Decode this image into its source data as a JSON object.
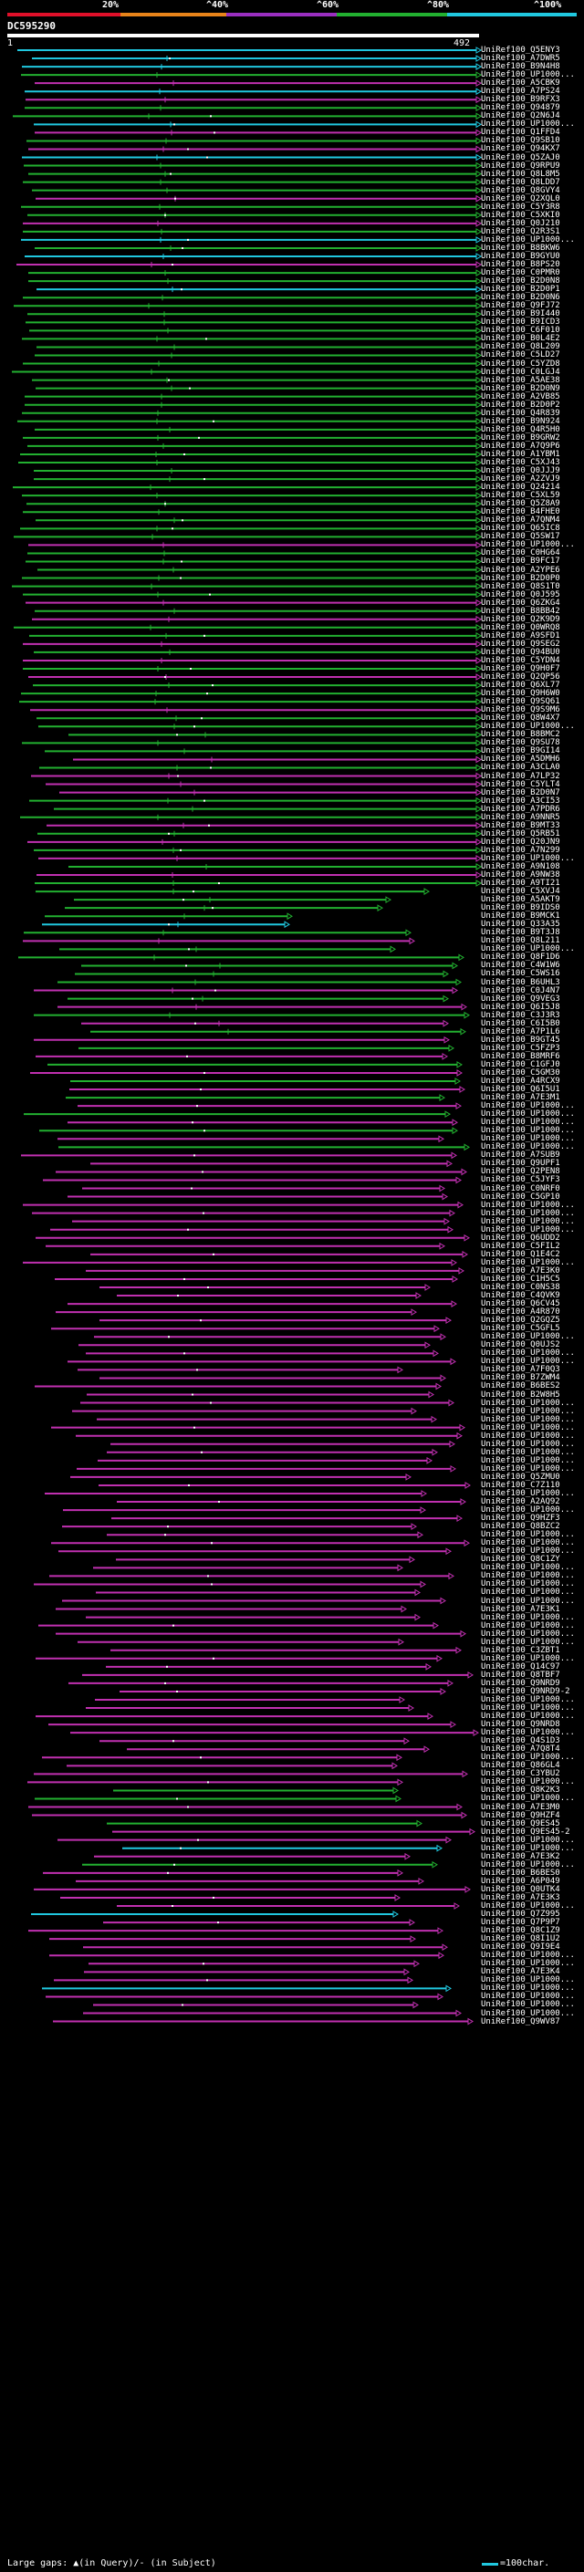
{
  "scale": {
    "labels": [
      "20%",
      "^40%",
      "^60%",
      "^80%",
      "^100%"
    ],
    "colors": [
      "#e0102a",
      "#e8841a",
      "#9a2fc0",
      "#22b030",
      "#20c8e0"
    ]
  },
  "query": {
    "name": "DC595290",
    "start": "1",
    "end": "492"
  },
  "colors": {
    "background": "#000000",
    "cyan": "#20c8e0",
    "green": "#22b030",
    "magenta": "#c030b0",
    "purple": "#9a2fc0",
    "white": "#ffffff"
  },
  "legend": {
    "text": "Large gaps: ▲(in Query)/- (in Subject)",
    "scale_text": "=100char."
  },
  "hits": [
    "UniRef100_Q5ENY3",
    "UniRef100_A7DWR5",
    "UniRef100_B9N4H8",
    "UniRef100_UP1000...",
    "UniRef100_A5CBK9",
    "UniRef100_A7PS24",
    "UniRef100_B9RFX3",
    "UniRef100_Q94879",
    "UniRef100_Q2N6J4",
    "UniRef100_UP1000...",
    "UniRef100_Q1FFD4",
    "UniRef100_Q9SB10",
    "UniRef100_Q94KX7",
    "UniRef100_Q5ZAJ0",
    "UniRef100_Q9RPU9",
    "UniRef100_Q8L8M5",
    "UniRef100_Q8LDD7",
    "UniRef100_Q8GVY4",
    "UniRef100_Q2XQL0",
    "UniRef100_C5Y3R8",
    "UniRef100_C5XKI0",
    "UniRef100_Q0J210",
    "UniRef100_Q2R3S1",
    "UniRef100_UP1000...",
    "UniRef100_B8BKW6",
    "UniRef100_B9GYU0",
    "UniRef100_B8PS20",
    "UniRef100_C0PMR0",
    "UniRef100_B2D0N8",
    "UniRef100_B2D0P1",
    "UniRef100_B2D0N6",
    "UniRef100_Q9FJ72",
    "UniRef100_B9I440",
    "UniRef100_B9ICD3",
    "UniRef100_C6F010",
    "UniRef100_B0L4E2",
    "UniRef100_Q8L209",
    "UniRef100_C5LD27",
    "UniRef100_C5YZD8",
    "UniRef100_C0LGJ4",
    "UniRef100_A5AE38",
    "UniRef100_B2D0N9",
    "UniRef100_A2VB85",
    "UniRef100_B2D0P2",
    "UniRef100_Q4R839",
    "UniRef100_B9N924",
    "UniRef100_Q4R5H0",
    "UniRef100_B9GRW2",
    "UniRef100_A7Q9P6",
    "UniRef100_A1YBM1",
    "UniRef100_C5XJ43",
    "UniRef100_Q0JJJ9",
    "UniRef100_A2ZVJ9",
    "UniRef100_Q24214",
    "UniRef100_C5XL59",
    "UniRef100_Q5Z8A9",
    "UniRef100_B4FHE0",
    "UniRef100_A7QNM4",
    "UniRef100_Q65IC8",
    "UniRef100_Q5SW17",
    "UniRef100_UP1000...",
    "UniRef100_C0HG64",
    "UniRef100_B9FC17",
    "UniRef100_A2YPE6",
    "UniRef100_B2D0P0",
    "UniRef100_Q8S1T0",
    "UniRef100_Q0J595",
    "UniRef100_Q6ZKG4",
    "UniRef100_B8BB42",
    "UniRef100_Q2K9D9",
    "UniRef100_Q0WRQ8",
    "UniRef100_A9SFD1",
    "UniRef100_Q9SEG2",
    "UniRef100_Q94BU0",
    "UniRef100_C5YDN4",
    "UniRef100_Q9H0F7",
    "UniRef100_Q2QP56",
    "UniRef100_Q6XL77",
    "UniRef100_Q9H6W0",
    "UniRef100_Q9SQ61",
    "UniRef100_Q9S9M6",
    "UniRef100_Q8W4X7",
    "UniRef100_UP1000...",
    "UniRef100_B8BMC2",
    "UniRef100_Q9SU78",
    "UniRef100_B9GI14",
    "UniRef100_A5DMH6",
    "UniRef100_A3CLA0",
    "UniRef100_A7LP32",
    "UniRef100_C5YLT4",
    "UniRef100_B2D0N7",
    "UniRef100_A3CI53",
    "UniRef100_A7PDR6",
    "UniRef100_A9NNR5",
    "UniRef100_B9MT33",
    "UniRef100_Q5RB51",
    "UniRef100_Q20JN9",
    "UniRef100_A7N299",
    "UniRef100_UP1000...",
    "UniRef100_A9N108",
    "UniRef100_A9NW38",
    "UniRef100_A9TI21",
    "UniRef100_C5XVJ4",
    "UniRef100_A5AKT9",
    "UniRef100_B9IDS0",
    "UniRef100_B9MCK1",
    "UniRef100_Q33A35",
    "UniRef100_B9T3J8",
    "UniRef100_Q8L211",
    "UniRef100_UP1000...",
    "UniRef100_Q8F1D6",
    "UniRef100_C4W1W6",
    "UniRef100_C5WS16",
    "UniRef100_B6UHL3",
    "UniRef100_C0J4N7",
    "UniRef100_Q9VEG3",
    "UniRef100_Q6I5J8",
    "UniRef100_C3J3R3",
    "UniRef100_C6I5B0",
    "UniRef100_A7P1L6",
    "UniRef100_B9GT45",
    "UniRef100_C5FZP3",
    "UniRef100_B8MRF6",
    "UniRef100_C1GFJ0",
    "UniRef100_C5GM30",
    "UniRef100_A4RCX9",
    "UniRef100_Q6I5U1",
    "UniRef100_A7E3M1",
    "UniRef100_UP1000...",
    "UniRef100_UP1000...",
    "UniRef100_UP1000...",
    "UniRef100_UP1000...",
    "UniRef100_UP1000...",
    "UniRef100_UP1000...",
    "UniRef100_A7SUB9",
    "UniRef100_Q9UPF1",
    "UniRef100_Q2PEN8",
    "UniRef100_C5JYF3",
    "UniRef100_C0NRF0",
    "UniRef100_C5GP10",
    "UniRef100_UP1000...",
    "UniRef100_UP1000...",
    "UniRef100_UP1000...",
    "UniRef100_UP1000...",
    "UniRef100_Q6UDD2",
    "UniRef100_C5FIL2",
    "UniRef100_Q1E4C2",
    "UniRef100_UP1000...",
    "UniRef100_A7E3K0",
    "UniRef100_C1H5C5",
    "UniRef100_C0NS38",
    "UniRef100_C4QVK9",
    "UniRef100_Q6CV45",
    "UniRef100_A4R870",
    "UniRef100_Q2GQZ5",
    "UniRef100_C5GFL5",
    "UniRef100_UP1000...",
    "UniRef100_Q0UJS2",
    "UniRef100_UP1000...",
    "UniRef100_UP1000...",
    "UniRef100_A7F0Q3",
    "UniRef100_B7ZWM4",
    "UniRef100_B6BES2",
    "UniRef100_B2W8H5",
    "UniRef100_UP1000...",
    "UniRef100_UP1000...",
    "UniRef100_UP1000...",
    "UniRef100_UP1000...",
    "UniRef100_UP1000...",
    "UniRef100_UP1000...",
    "UniRef100_UP1000...",
    "UniRef100_UP1000...",
    "UniRef100_UP1000...",
    "UniRef100_Q5ZMU0",
    "UniRef100_C7Z110",
    "UniRef100_UP1000...",
    "UniRef100_A2AQ92",
    "UniRef100_UP1000...",
    "UniRef100_Q9HZF3",
    "UniRef100_Q8BZC2",
    "UniRef100_UP1000...",
    "UniRef100_UP1000...",
    "UniRef100_UP1000...",
    "UniRef100_Q8C1ZY",
    "UniRef100_UP1000...",
    "UniRef100_UP1000...",
    "UniRef100_UP1000...",
    "UniRef100_UP1000...",
    "UniRef100_UP1000...",
    "UniRef100_A7E3K1",
    "UniRef100_UP1000...",
    "UniRef100_UP1000...",
    "UniRef100_UP1000...",
    "UniRef100_UP1000...",
    "UniRef100_C3ZBT1",
    "UniRef100_UP1000...",
    "UniRef100_Q14C97",
    "UniRef100_Q8TBF7",
    "UniRef100_Q9NRD9",
    "UniRef100_Q9NRD9-2",
    "UniRef100_UP1000...",
    "UniRef100_UP1000...",
    "UniRef100_UP1000...",
    "UniRef100_Q9NRD8",
    "UniRef100_UP1000...",
    "UniRef100_Q4S1D3",
    "UniRef100_A7Q8T4",
    "UniRef100_UP1000...",
    "UniRef100_Q86GL4",
    "UniRef100_C3YBU2",
    "UniRef100_UP1000...",
    "UniRef100_Q8K2K3",
    "UniRef100_UP1000...",
    "UniRef100_A7E3M0",
    "UniRef100_Q9HZF4",
    "UniRef100_Q9ES45",
    "UniRef100_Q9ES45-2",
    "UniRef100_UP1000...",
    "UniRef100_UP1000...",
    "UniRef100_A7E3K2",
    "UniRef100_UP1000...",
    "UniRef100_B6BES0",
    "UniRef100_A6P049",
    "UniRef100_Q0UTK4",
    "UniRef100_A7E3K3",
    "UniRef100_UP1000...",
    "UniRef100_Q7Z995",
    "UniRef100_Q7P9P7",
    "UniRef100_Q8C1Z9",
    "UniRef100_Q8I1U2",
    "UniRef100_Q9I9E4",
    "UniRef100_UP1000...",
    "UniRef100_UP1000...",
    "UniRef100_A7E3K4",
    "UniRef100_UP1000...",
    "UniRef100_UP1000...",
    "UniRef100_UP1000...",
    "UniRef100_UP1000...",
    "UniRef100_UP1000...",
    "UniRef100_Q9WV87"
  ]
}
